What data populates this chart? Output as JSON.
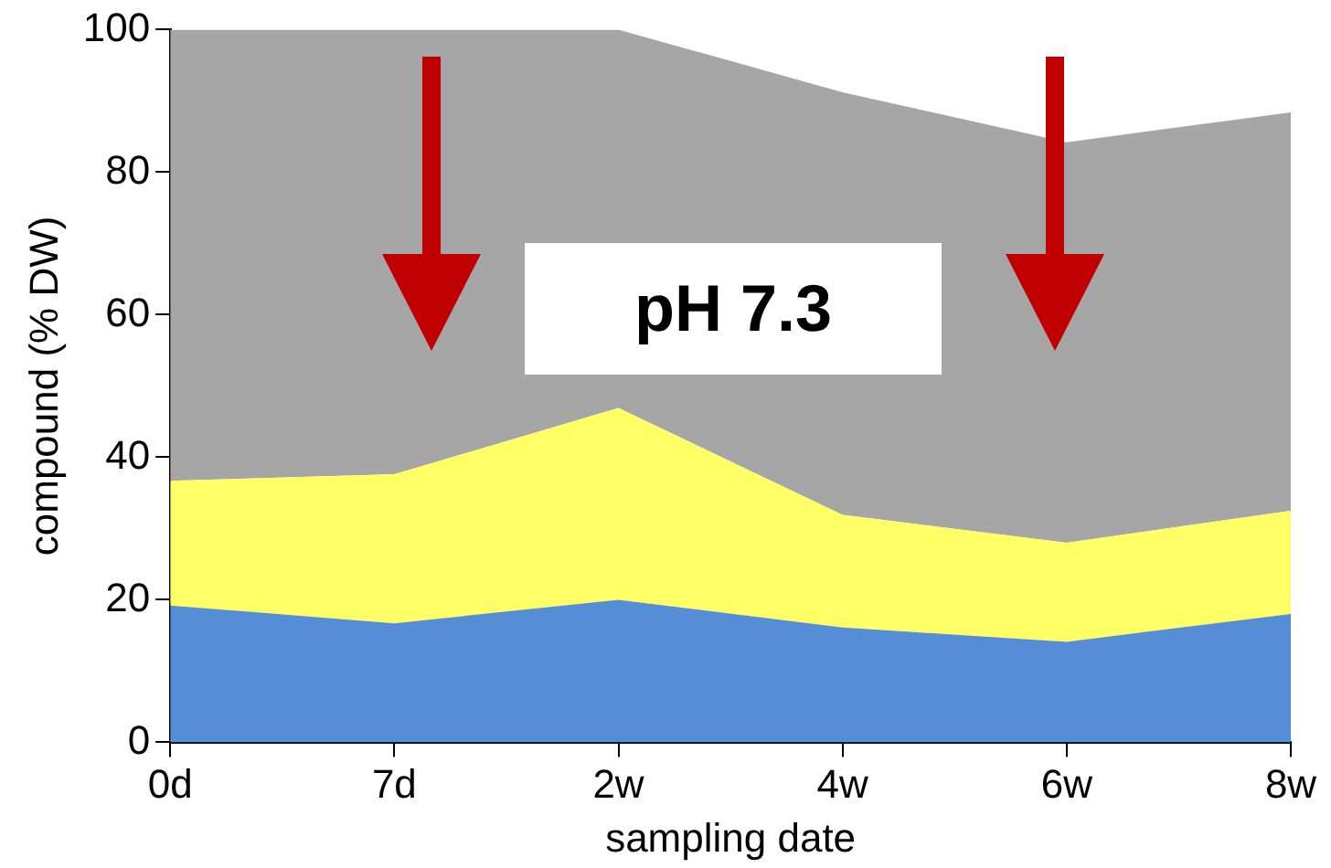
{
  "chart_data": {
    "type": "area",
    "stacked": true,
    "xlabel": "sampling date",
    "ylabel": "compound (% DW)",
    "categories": [
      "0d",
      "7d",
      "2w",
      "4w",
      "6w",
      "8w"
    ],
    "series": [
      {
        "color": "#558ed5",
        "values": [
          19.2,
          16.7,
          20,
          16.1,
          14.1,
          18
        ]
      },
      {
        "color": "#ffff66",
        "values": [
          17.5,
          20.9,
          26.9,
          15.8,
          13.9,
          14.5
        ]
      },
      {
        "color": "#a6a6a6",
        "values": [
          63.3,
          62.4,
          53.1,
          59.3,
          56.2,
          55.9
        ]
      }
    ],
    "ylim": [
      0,
      100
    ],
    "yticks": [
      0,
      20,
      40,
      60,
      80,
      100
    ],
    "grid": false,
    "legend": false,
    "annotations": [
      "pH 7.3"
    ]
  }
}
